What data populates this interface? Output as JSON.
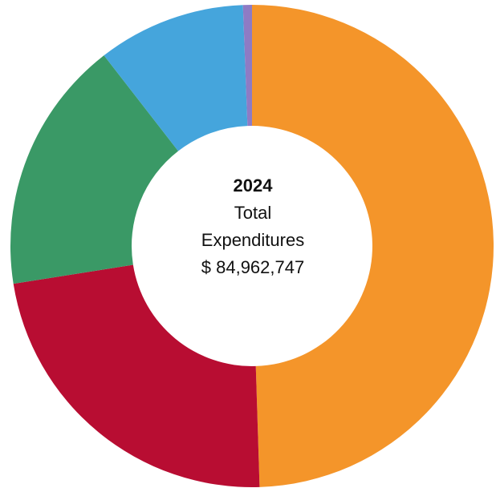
{
  "chart_data": {
    "type": "pie",
    "donut": true,
    "center_text": {
      "year": "2024",
      "line1": "Total",
      "line2": "Expenditures",
      "amount": "$ 84,962,747"
    },
    "slices": [
      {
        "value": 49.5,
        "color": "#F4952A"
      },
      {
        "value": 23.0,
        "color": "#B80D32"
      },
      {
        "value": 17.0,
        "color": "#3A9966"
      },
      {
        "value": 9.9,
        "color": "#45A5DC"
      },
      {
        "value": 0.6,
        "color": "#8E7BC4"
      }
    ]
  }
}
